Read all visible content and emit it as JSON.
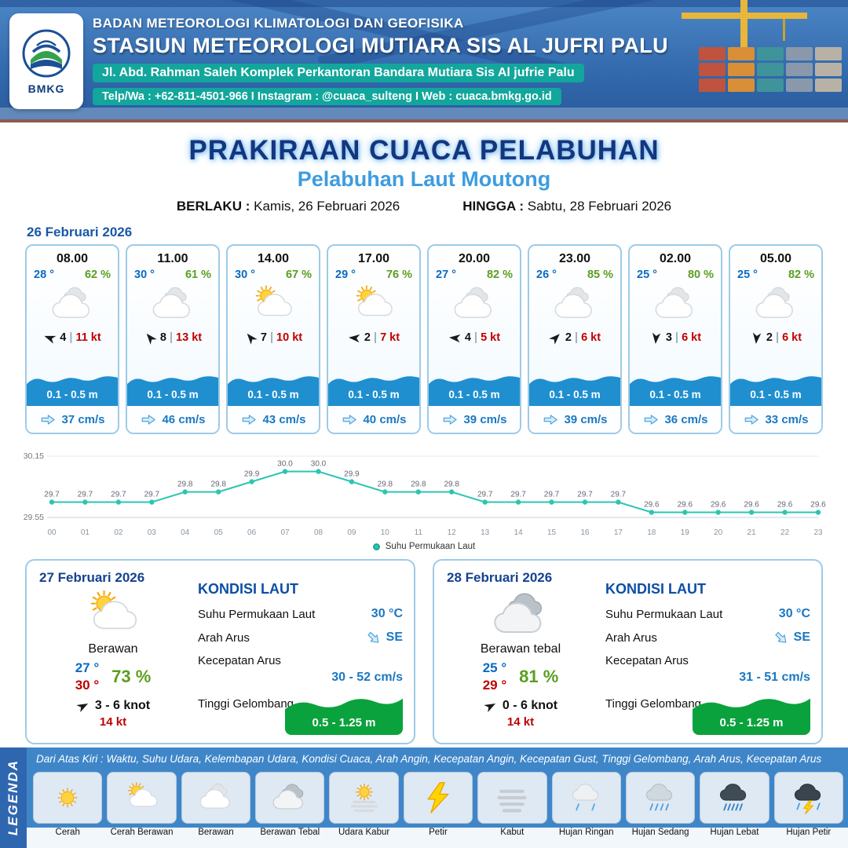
{
  "header": {
    "org": "BADAN METEOROLOGI KLIMATOLOGI DAN GEOFISIKA",
    "station": "STASIUN METEOROLOGI MUTIARA SIS AL JUFRI PALU",
    "address": "Jl. Abd. Rahman Saleh Komplek Perkantoran Bandara Mutiara Sis Al jufrie Palu",
    "contact": "Telp/Wa : +62-811-4501-966  I  Instagram : @cuaca_sulteng  I  Web : cuaca.bmkg.go.id",
    "logo_text": "BMKG"
  },
  "title": {
    "main": "PRAKIRAAN CUACA PELABUHAN",
    "subtitle": "Pelabuhan Laut Moutong"
  },
  "validity": {
    "berlaku_label": "BERLAKU :",
    "berlaku_value": "Kamis, 26 Februari 2026",
    "hingga_label": "HINGGA :",
    "hingga_value": "Sabtu, 28 Februari 2026"
  },
  "hourly": {
    "date": "26 Februari 2026",
    "cards": [
      {
        "time": "08.00",
        "temp": "28 °",
        "rh": "62 %",
        "icon": "berawan",
        "wind_deg": 200,
        "wind_speed": "4",
        "gust": "11 kt",
        "wave": "0.1 - 0.5 m",
        "current": "37 cm/s"
      },
      {
        "time": "11.00",
        "temp": "30 °",
        "rh": "61 %",
        "icon": "berawan",
        "wind_deg": 230,
        "wind_speed": "8",
        "gust": "13 kt",
        "wave": "0.1 - 0.5 m",
        "current": "46 cm/s"
      },
      {
        "time": "14.00",
        "temp": "30 °",
        "rh": "67 %",
        "icon": "cerah-berawan",
        "wind_deg": 230,
        "wind_speed": "7",
        "gust": "10 kt",
        "wave": "0.1 - 0.5 m",
        "current": "43 cm/s"
      },
      {
        "time": "17.00",
        "temp": "29 °",
        "rh": "76 %",
        "icon": "cerah-berawan",
        "wind_deg": 185,
        "wind_speed": "2",
        "gust": "7 kt",
        "wave": "0.1 - 0.5 m",
        "current": "40 cm/s"
      },
      {
        "time": "20.00",
        "temp": "27 °",
        "rh": "82 %",
        "icon": "berawan",
        "wind_deg": 185,
        "wind_speed": "4",
        "gust": "5 kt",
        "wave": "0.1 - 0.5 m",
        "current": "39 cm/s"
      },
      {
        "time": "23.00",
        "temp": "26 °",
        "rh": "85 %",
        "icon": "berawan",
        "wind_deg": 315,
        "wind_speed": "2",
        "gust": "6 kt",
        "wave": "0.1 - 0.5 m",
        "current": "39 cm/s"
      },
      {
        "time": "02.00",
        "temp": "25 °",
        "rh": "80 %",
        "icon": "berawan",
        "wind_deg": 95,
        "wind_speed": "3",
        "gust": "6 kt",
        "wave": "0.1 - 0.5 m",
        "current": "36 cm/s"
      },
      {
        "time": "05.00",
        "temp": "25 °",
        "rh": "82 %",
        "icon": "berawan",
        "wind_deg": 95,
        "wind_speed": "2",
        "gust": "6 kt",
        "wave": "0.1 - 0.5 m",
        "current": "33 cm/s"
      }
    ]
  },
  "chart_data": {
    "type": "line",
    "legend": "Suhu Permukaan Laut",
    "x": [
      "00",
      "01",
      "02",
      "03",
      "04",
      "05",
      "06",
      "07",
      "08",
      "09",
      "10",
      "11",
      "12",
      "13",
      "14",
      "15",
      "16",
      "17",
      "18",
      "19",
      "20",
      "21",
      "22",
      "23"
    ],
    "values": [
      29.7,
      29.7,
      29.7,
      29.7,
      29.8,
      29.8,
      29.9,
      30.0,
      30.0,
      29.9,
      29.8,
      29.8,
      29.8,
      29.7,
      29.7,
      29.7,
      29.7,
      29.7,
      29.6,
      29.6,
      29.6,
      29.6,
      29.6,
      29.6
    ],
    "ylim": [
      29.55,
      30.15
    ],
    "line_color": "#2cc5b2",
    "grid": true,
    "legend_position": "bottom"
  },
  "daily": [
    {
      "date": "27 Februari 2026",
      "icon": "cerah-berawan",
      "condition": "Berawan",
      "temp_min": "27 °",
      "temp_max": "30 °",
      "rh": "73 %",
      "wind": "3 - 6 knot",
      "gust": "14 kt",
      "sea": {
        "title": "KONDISI LAUT",
        "sst_label": "Suhu Permukaan Laut",
        "sst": "30 °C",
        "current_dir_label": "Arah Arus",
        "current_dir": "SE",
        "current_speed_label": "Kecepatan Arus",
        "current_speed": "30 - 52 cm/s",
        "wave_label": "Tinggi Gelombang",
        "wave": "0.5 - 1.25 m"
      }
    },
    {
      "date": "28 Februari 2026",
      "icon": "berawan-tebal",
      "condition": "Berawan tebal",
      "temp_min": "25 °",
      "temp_max": "29 °",
      "rh": "81 %",
      "wind": "0 - 6 knot",
      "gust": "14 kt",
      "sea": {
        "title": "KONDISI LAUT",
        "sst_label": "Suhu Permukaan Laut",
        "sst": "30 °C",
        "current_dir_label": "Arah Arus",
        "current_dir": "SE",
        "current_speed_label": "Kecepatan Arus",
        "current_speed": "31 - 51 cm/s",
        "wave_label": "Tinggi Gelombang",
        "wave": "0.5 - 1.25 m"
      }
    }
  ],
  "legend": {
    "title": "LEGENDA",
    "description": "Dari Atas Kiri : Waktu, Suhu Udara, Kelembapan Udara, Kondisi Cuaca, Arah Angin, Kecepatan Angin, Kecepatan Gust, Tinggi Gelombang, Arah Arus, Kecepatan Arus",
    "items": [
      {
        "label": "Cerah",
        "icon": "cerah"
      },
      {
        "label": "Cerah Berawan",
        "icon": "cerah-berawan"
      },
      {
        "label": "Berawan",
        "icon": "berawan"
      },
      {
        "label": "Berawan Tebal",
        "icon": "berawan-tebal"
      },
      {
        "label": "Udara Kabur",
        "icon": "udara-kabur"
      },
      {
        "label": "Petir",
        "icon": "petir"
      },
      {
        "label": "Kabut",
        "icon": "kabut"
      },
      {
        "label": "Hujan Ringan",
        "icon": "hujan-ringan"
      },
      {
        "label": "Hujan Sedang",
        "icon": "hujan-sedang"
      },
      {
        "label": "Hujan Lebat",
        "icon": "hujan-lebat"
      },
      {
        "label": "Hujan Petir",
        "icon": "hujan-petir"
      }
    ]
  },
  "colors": {
    "navy_title": "#15357e",
    "subtitle_blue": "#3d9ce0",
    "teal_band": "#12a69c",
    "temp_blue": "#0a6bc2",
    "rh_green": "#5a9e1e",
    "gust_red": "#c00000",
    "wave_band_blue": "#1f8fd0",
    "wave_box_green": "#0aa23c",
    "chart_teal": "#2cc5b2",
    "legend_band_blue": "#3f86c9"
  }
}
